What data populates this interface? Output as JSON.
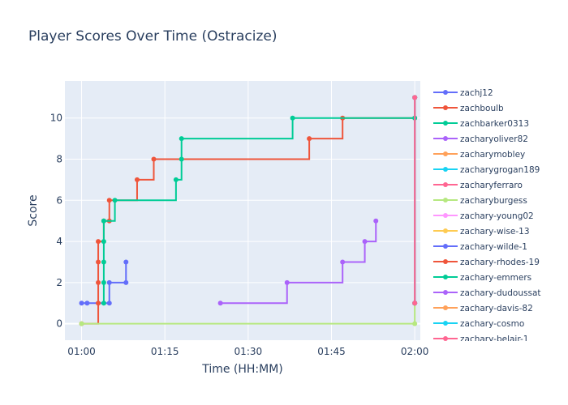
{
  "chart_data": {
    "type": "line",
    "line_shape": "step",
    "title": "Player Scores Over Time (Ostracize)",
    "xlabel": "Time (HH:MM)",
    "ylabel": "Score",
    "x_range": [
      "00:57",
      "02:01"
    ],
    "y_range": [
      -0.8,
      11.8
    ],
    "x_ticks": [
      "01:00",
      "01:15",
      "01:30",
      "01:45",
      "02:00"
    ],
    "y_ticks": [
      0,
      2,
      4,
      6,
      8,
      10
    ],
    "grid": true,
    "legend_position": "right",
    "colors": {
      "plot_bg": "#e5ecf6",
      "grid": "#ffffff",
      "text": "#2a3f5f"
    },
    "series": [
      {
        "name": "zachj12",
        "color": "#636efa",
        "points": [
          [
            "01:00",
            1
          ],
          [
            "01:01",
            1
          ],
          [
            "01:05",
            1
          ],
          [
            "01:05",
            2
          ],
          [
            "01:08",
            2
          ],
          [
            "01:08",
            3
          ]
        ]
      },
      {
        "name": "zachboulb",
        "color": "#ef553b",
        "points": [
          [
            "01:00",
            0
          ],
          [
            "01:03",
            1
          ],
          [
            "01:03",
            2
          ],
          [
            "01:03",
            3
          ],
          [
            "01:03",
            4
          ],
          [
            "01:04",
            5
          ],
          [
            "01:05",
            5
          ],
          [
            "01:05",
            6
          ],
          [
            "01:10",
            7
          ],
          [
            "01:13",
            8
          ],
          [
            "01:41",
            9
          ],
          [
            "01:47",
            10
          ],
          [
            "02:00",
            10
          ]
        ]
      },
      {
        "name": "zachbarker0313",
        "color": "#00cc96",
        "points": [
          [
            "01:04",
            1
          ],
          [
            "01:04",
            2
          ],
          [
            "01:04",
            3
          ],
          [
            "01:04",
            4
          ],
          [
            "01:04",
            5
          ],
          [
            "01:06",
            6
          ],
          [
            "01:17",
            7
          ],
          [
            "01:18",
            8
          ],
          [
            "01:18",
            9
          ],
          [
            "01:38",
            10
          ],
          [
            "02:00",
            10
          ]
        ]
      },
      {
        "name": "zacharyoliver82",
        "color": "#ab63fa",
        "points": [
          [
            "01:25",
            1
          ],
          [
            "01:37",
            2
          ],
          [
            "01:47",
            3
          ],
          [
            "01:51",
            4
          ],
          [
            "01:53",
            5
          ]
        ]
      },
      {
        "name": "zacharymobley",
        "color": "#ffa15a",
        "points": [
          [
            "02:00",
            1
          ],
          [
            "02:00",
            11
          ]
        ]
      },
      {
        "name": "zacharygrogan189",
        "color": "#19d3f3",
        "points": [
          [
            "02:00",
            1
          ],
          [
            "02:00",
            11
          ]
        ]
      },
      {
        "name": "zacharyferraro",
        "color": "#ff6692",
        "points": [
          [
            "02:00",
            1
          ],
          [
            "02:00",
            11
          ]
        ]
      },
      {
        "name": "zacharyburgess",
        "color": "#b6e880",
        "points": [
          [
            "01:00",
            0
          ],
          [
            "02:00",
            0
          ],
          [
            "02:00",
            11
          ]
        ]
      },
      {
        "name": "zachary-young02",
        "color": "#ff97ff",
        "points": [
          [
            "02:00",
            1
          ],
          [
            "02:00",
            11
          ]
        ]
      },
      {
        "name": "zachary-wise-13",
        "color": "#fecb52",
        "points": [
          [
            "02:00",
            1
          ],
          [
            "02:00",
            11
          ]
        ]
      },
      {
        "name": "zachary-wilde-1",
        "color": "#636efa",
        "points": [
          [
            "02:00",
            1
          ],
          [
            "02:00",
            11
          ]
        ]
      },
      {
        "name": "zachary-rhodes-19",
        "color": "#ef553b",
        "points": [
          [
            "02:00",
            1
          ],
          [
            "02:00",
            11
          ]
        ]
      },
      {
        "name": "zachary-emmers",
        "color": "#00cc96",
        "points": [
          [
            "02:00",
            1
          ],
          [
            "02:00",
            11
          ]
        ]
      },
      {
        "name": "zachary-dudoussat",
        "color": "#ab63fa",
        "points": [
          [
            "02:00",
            1
          ],
          [
            "02:00",
            11
          ]
        ]
      },
      {
        "name": "zachary-davis-82",
        "color": "#ffa15a",
        "points": [
          [
            "02:00",
            1
          ],
          [
            "02:00",
            11
          ]
        ]
      },
      {
        "name": "zachary-cosmo",
        "color": "#19d3f3",
        "points": [
          [
            "02:00",
            1
          ],
          [
            "02:00",
            11
          ]
        ]
      },
      {
        "name": "zachary-belair-1",
        "color": "#ff6692",
        "points": [
          [
            "02:00",
            1
          ],
          [
            "02:00",
            11
          ]
        ]
      }
    ]
  }
}
